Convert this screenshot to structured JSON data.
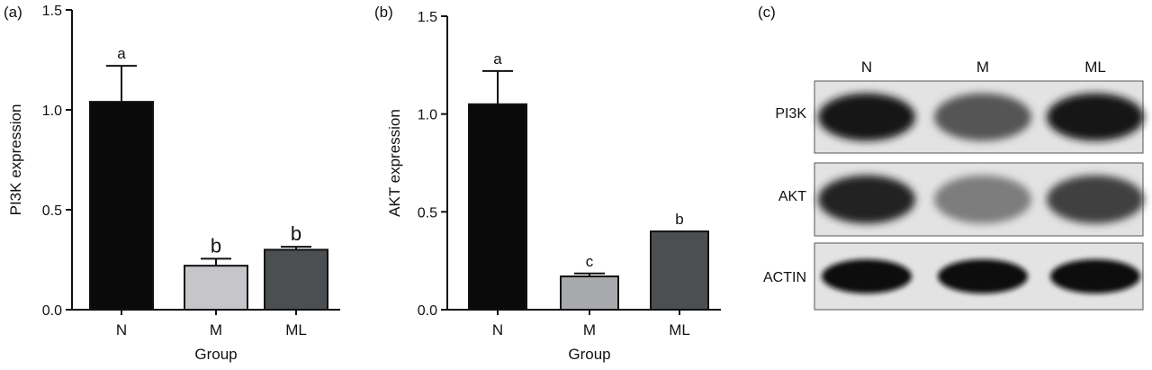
{
  "panels": {
    "a": "(a)",
    "b": "(b)",
    "c": "(c)"
  },
  "chart_data": [
    {
      "type": "bar",
      "xlabel": "Group",
      "ylabel": "PI3K expression",
      "ylim": [
        0,
        1.5
      ],
      "yticks": [
        "0.0",
        "0.5",
        "1.0",
        "1.5"
      ],
      "categories": [
        "N",
        "M",
        "ML"
      ],
      "values": [
        1.04,
        0.22,
        0.3
      ],
      "errors": [
        0.18,
        0.035,
        0.015
      ],
      "significance": [
        "a",
        "b",
        "b"
      ],
      "bar_colors": [
        "#0a0a0a",
        "#c6c6ca",
        "#4b4f52"
      ]
    },
    {
      "type": "bar",
      "xlabel": "Group",
      "ylabel": "AKT expression",
      "ylim": [
        0,
        1.5
      ],
      "yticks": [
        "0.0",
        "0.5",
        "1.0",
        "1.5"
      ],
      "categories": [
        "N",
        "M",
        "ML"
      ],
      "values": [
        1.05,
        0.17,
        0.4
      ],
      "errors": [
        0.17,
        0.015,
        0.0
      ],
      "significance": [
        "a",
        "c",
        "b"
      ],
      "bar_colors": [
        "#0a0a0a",
        "#a8a9ad",
        "#4b4f52"
      ]
    }
  ],
  "blot": {
    "lanes": [
      "N",
      "M",
      "ML"
    ],
    "rows": [
      {
        "label": "PI3K",
        "intensity": [
          0.95,
          0.65,
          0.97
        ]
      },
      {
        "label": "AKT",
        "intensity": [
          0.9,
          0.45,
          0.75
        ]
      },
      {
        "label": "ACTIN",
        "intensity": [
          1.0,
          1.0,
          1.0
        ]
      }
    ]
  }
}
